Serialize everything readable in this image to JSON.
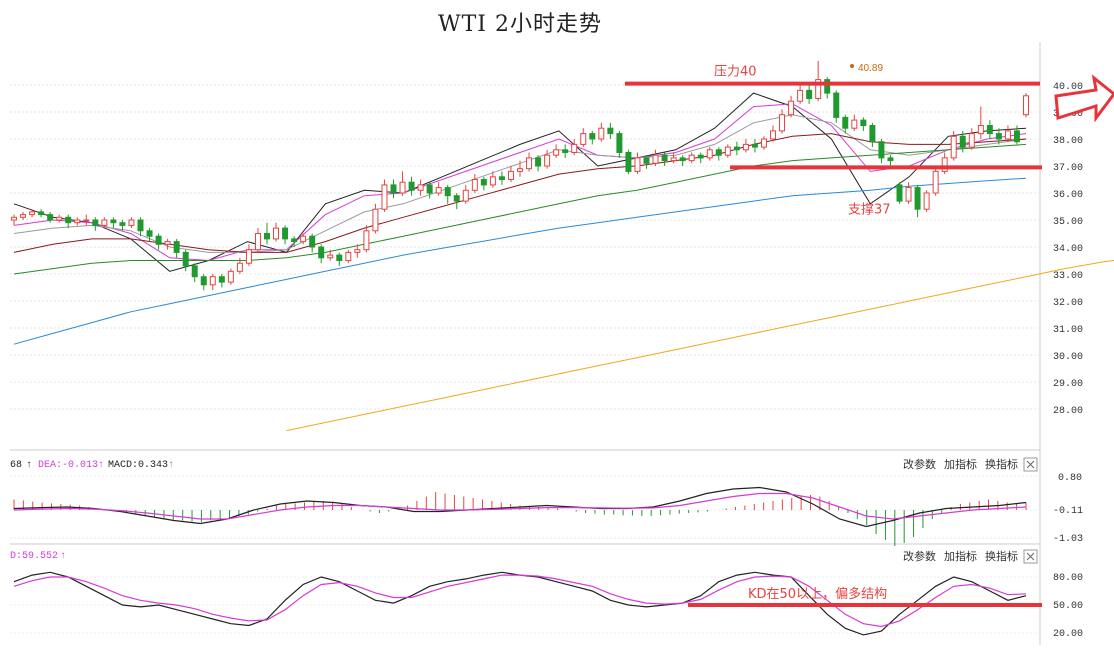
{
  "title": "WTI 2小时走势",
  "main_chart": {
    "y_ticks": [
      "40.00",
      "39.00",
      "38.00",
      "37.00",
      "36.00",
      "35.00",
      "34.00",
      "33.00",
      "32.00",
      "31.00",
      "30.00",
      "29.00",
      "28.00"
    ],
    "resistance": {
      "label": "压力40",
      "value": 40.05
    },
    "support": {
      "label": "支撑37",
      "value": 36.95
    },
    "high_label": "40.89",
    "colors": {
      "up": "#e8433f",
      "down": "#1f9a2f",
      "annot": "#e8433f"
    }
  },
  "macd_panel": {
    "header": {
      "prefix": "68",
      "dea": "DEA:-0.013",
      "macd": "MACD:0.343"
    },
    "buttons": [
      "改参数",
      "加指标",
      "换指标"
    ],
    "y_ticks": [
      "0.80",
      "-0.11",
      "-1.03"
    ]
  },
  "kdj_panel": {
    "header": {
      "value": "D:59.552"
    },
    "buttons": [
      "改参数",
      "加指标",
      "换指标"
    ],
    "y_ticks": [
      "80.00",
      "50.00",
      "20.00"
    ],
    "annotation": "KD在50以上，偏多结构",
    "line_value": 50
  },
  "chart_data": [
    {
      "type": "candlestick",
      "title": "WTI 2小时走势",
      "ylim": [
        27.2,
        40.9
      ],
      "annotations": [
        "压力40",
        "支撑37",
        "40.89"
      ],
      "candles": [
        [
          35.0,
          35.1,
          34.8,
          35.2
        ],
        [
          35.1,
          35.2,
          35.0,
          35.3
        ],
        [
          35.2,
          35.3,
          35.1,
          35.4
        ],
        [
          35.3,
          35.2,
          35.1,
          35.4
        ],
        [
          35.2,
          35.0,
          34.9,
          35.3
        ],
        [
          35.0,
          35.1,
          34.9,
          35.2
        ],
        [
          35.1,
          34.9,
          34.7,
          35.2
        ],
        [
          34.9,
          35.0,
          34.8,
          35.1
        ],
        [
          35.0,
          35.0,
          34.8,
          35.2
        ],
        [
          35.0,
          34.8,
          34.6,
          35.1
        ],
        [
          34.8,
          35.0,
          34.7,
          35.1
        ],
        [
          35.0,
          34.9,
          34.7,
          35.1
        ],
        [
          34.9,
          34.8,
          34.6,
          35.0
        ],
        [
          34.8,
          35.0,
          34.7,
          35.1
        ],
        [
          35.0,
          34.6,
          34.4,
          35.1
        ],
        [
          34.6,
          34.4,
          34.2,
          34.7
        ],
        [
          34.4,
          34.1,
          33.9,
          34.5
        ],
        [
          34.1,
          34.2,
          33.9,
          34.3
        ],
        [
          34.2,
          33.8,
          33.6,
          34.3
        ],
        [
          33.8,
          33.3,
          33.1,
          33.9
        ],
        [
          33.3,
          32.9,
          32.7,
          33.4
        ],
        [
          32.9,
          32.6,
          32.4,
          33.0
        ],
        [
          32.6,
          32.9,
          32.4,
          33.0
        ],
        [
          32.9,
          32.7,
          32.5,
          33.0
        ],
        [
          32.7,
          33.1,
          32.6,
          33.2
        ],
        [
          33.1,
          33.4,
          33.0,
          33.6
        ],
        [
          33.4,
          33.9,
          33.3,
          34.1
        ],
        [
          33.9,
          34.5,
          33.8,
          34.7
        ],
        [
          34.5,
          34.3,
          34.1,
          34.9
        ],
        [
          34.3,
          34.7,
          34.2,
          34.9
        ],
        [
          34.7,
          34.3,
          34.1,
          34.8
        ],
        [
          34.3,
          34.2,
          34.0,
          34.4
        ],
        [
          34.2,
          34.4,
          34.1,
          34.5
        ],
        [
          34.4,
          34.0,
          33.8,
          34.5
        ],
        [
          34.0,
          33.6,
          33.4,
          34.1
        ],
        [
          33.6,
          33.7,
          33.5,
          33.9
        ],
        [
          33.7,
          33.5,
          33.3,
          33.8
        ],
        [
          33.5,
          33.8,
          33.4,
          33.9
        ],
        [
          33.8,
          33.9,
          33.6,
          34.1
        ],
        [
          33.9,
          34.6,
          33.8,
          34.8
        ],
        [
          34.6,
          35.4,
          34.5,
          35.6
        ],
        [
          35.4,
          36.3,
          35.3,
          36.5
        ],
        [
          36.3,
          36.0,
          35.8,
          36.5
        ],
        [
          36.0,
          36.4,
          35.9,
          36.8
        ],
        [
          36.4,
          36.1,
          35.9,
          36.6
        ],
        [
          36.1,
          36.3,
          35.9,
          36.5
        ],
        [
          36.3,
          36.0,
          35.8,
          36.4
        ],
        [
          36.0,
          36.2,
          35.9,
          36.4
        ],
        [
          36.2,
          35.9,
          35.6,
          36.3
        ],
        [
          35.9,
          35.7,
          35.4,
          36.0
        ],
        [
          35.7,
          36.1,
          35.6,
          36.3
        ],
        [
          36.1,
          36.5,
          36.0,
          36.7
        ],
        [
          36.5,
          36.3,
          36.1,
          36.6
        ],
        [
          36.3,
          36.6,
          36.2,
          36.8
        ],
        [
          36.6,
          36.5,
          36.3,
          36.8
        ],
        [
          36.5,
          36.8,
          36.4,
          37.0
        ],
        [
          36.8,
          36.9,
          36.6,
          37.2
        ],
        [
          36.9,
          37.3,
          36.8,
          37.5
        ],
        [
          37.3,
          37.0,
          36.8,
          37.4
        ],
        [
          37.0,
          37.4,
          36.9,
          37.6
        ],
        [
          37.4,
          37.6,
          37.3,
          37.8
        ],
        [
          37.6,
          37.5,
          37.3,
          37.8
        ],
        [
          37.5,
          37.8,
          37.4,
          38.0
        ],
        [
          37.8,
          38.2,
          37.7,
          38.4
        ],
        [
          38.2,
          38.0,
          37.8,
          38.3
        ],
        [
          38.0,
          38.4,
          37.9,
          38.6
        ],
        [
          38.4,
          38.2,
          38.0,
          38.6
        ],
        [
          38.2,
          37.5,
          37.3,
          38.3
        ],
        [
          37.5,
          36.8,
          36.7,
          37.6
        ],
        [
          36.8,
          37.3,
          36.7,
          37.5
        ],
        [
          37.3,
          37.1,
          36.9,
          37.4
        ],
        [
          37.1,
          37.4,
          37.0,
          37.6
        ],
        [
          37.4,
          37.2,
          37.0,
          37.5
        ],
        [
          37.2,
          37.3,
          37.1,
          37.5
        ],
        [
          37.3,
          37.2,
          37.0,
          37.4
        ],
        [
          37.2,
          37.4,
          37.1,
          37.5
        ],
        [
          37.4,
          37.3,
          37.1,
          37.5
        ],
        [
          37.3,
          37.6,
          37.2,
          37.7
        ],
        [
          37.6,
          37.4,
          37.2,
          37.7
        ],
        [
          37.4,
          37.7,
          37.3,
          37.8
        ],
        [
          37.7,
          37.6,
          37.4,
          37.9
        ],
        [
          37.6,
          37.8,
          37.5,
          38.0
        ],
        [
          37.8,
          37.7,
          37.5,
          38.0
        ],
        [
          37.7,
          38.0,
          37.6,
          38.1
        ],
        [
          38.0,
          38.3,
          37.9,
          38.5
        ],
        [
          38.3,
          38.9,
          38.2,
          39.1
        ],
        [
          38.9,
          39.4,
          38.8,
          39.6
        ],
        [
          39.4,
          39.8,
          39.3,
          40.0
        ],
        [
          39.8,
          39.5,
          39.3,
          40.0
        ],
        [
          39.5,
          40.2,
          39.4,
          40.89
        ],
        [
          40.2,
          39.7,
          39.5,
          40.3
        ],
        [
          39.7,
          38.8,
          38.6,
          39.8
        ],
        [
          38.8,
          38.4,
          38.2,
          38.9
        ],
        [
          38.4,
          38.7,
          38.3,
          38.9
        ],
        [
          38.7,
          38.5,
          38.3,
          38.8
        ],
        [
          38.5,
          37.9,
          37.7,
          38.6
        ],
        [
          37.9,
          37.3,
          37.1,
          38.0
        ],
        [
          37.3,
          37.2,
          36.9,
          37.4
        ],
        [
          36.3,
          35.7,
          35.6,
          36.4
        ],
        [
          35.7,
          36.2,
          35.6,
          36.4
        ],
        [
          36.2,
          35.4,
          35.1,
          36.3
        ],
        [
          35.4,
          36.0,
          35.3,
          36.1
        ],
        [
          36.0,
          36.8,
          35.9,
          37.0
        ],
        [
          36.8,
          37.3,
          36.7,
          37.5
        ],
        [
          37.3,
          38.1,
          37.2,
          38.3
        ],
        [
          38.1,
          37.7,
          37.5,
          38.3
        ],
        [
          37.7,
          38.2,
          37.6,
          38.4
        ],
        [
          38.2,
          38.5,
          38.0,
          39.2
        ],
        [
          38.5,
          38.2,
          38.0,
          38.7
        ],
        [
          38.2,
          38.0,
          37.8,
          38.4
        ],
        [
          38.0,
          38.3,
          37.9,
          38.5
        ],
        [
          38.3,
          37.9,
          37.8,
          38.5
        ],
        [
          38.9,
          39.6,
          38.8,
          39.7
        ]
      ],
      "moving_averages": [
        {
          "color": "#222222",
          "values": [
            35.6,
            35.1,
            34.9,
            34.3,
            33.1,
            33.5,
            34.2,
            33.8,
            35.6,
            36.1,
            36.0,
            36.6,
            37.2,
            37.8,
            38.3,
            37.0,
            37.3,
            37.6,
            38.4,
            39.7,
            39.2,
            38.0,
            35.6,
            36.6,
            38.1,
            38.3,
            38.4
          ]
        },
        {
          "color": "#d63bd6",
          "values": [
            34.8,
            35.0,
            34.9,
            34.5,
            33.6,
            33.5,
            33.9,
            33.9,
            35.2,
            35.9,
            36.0,
            36.5,
            37.0,
            37.5,
            38.0,
            37.4,
            37.3,
            37.5,
            38.0,
            39.2,
            39.3,
            38.5,
            36.8,
            37.0,
            37.6,
            38.0,
            38.2
          ]
        },
        {
          "color": "#9a9a9a",
          "values": [
            34.5,
            34.7,
            34.8,
            34.6,
            34.0,
            33.8,
            33.8,
            33.9,
            34.6,
            35.3,
            35.6,
            36.1,
            36.6,
            37.1,
            37.6,
            37.4,
            37.3,
            37.4,
            37.8,
            38.6,
            38.9,
            38.6,
            37.6,
            37.4,
            37.6,
            37.8,
            38.0
          ]
        },
        {
          "color": "#8b1a1a",
          "values": [
            33.8,
            34.1,
            34.3,
            34.3,
            34.1,
            33.9,
            33.8,
            33.8,
            34.2,
            34.7,
            35.1,
            35.5,
            35.9,
            36.3,
            36.7,
            36.9,
            37.0,
            37.2,
            37.4,
            37.8,
            38.1,
            38.2,
            37.9,
            37.8,
            37.8,
            37.9,
            38.0
          ]
        },
        {
          "color": "#2a8a2a",
          "values": [
            33.0,
            33.2,
            33.4,
            33.5,
            33.5,
            33.5,
            33.5,
            33.6,
            33.8,
            34.1,
            34.4,
            34.7,
            35.0,
            35.3,
            35.6,
            35.9,
            36.1,
            36.4,
            36.7,
            37.0,
            37.2,
            37.3,
            37.4,
            37.5,
            37.6,
            37.7,
            37.8
          ]
        },
        {
          "color": "#2b8ad6",
          "values": [
            30.4,
            30.8,
            31.2,
            31.6,
            31.9,
            32.2,
            32.5,
            32.8,
            33.1,
            33.4,
            33.7,
            33.95,
            34.2,
            34.45,
            34.7,
            34.9,
            35.1,
            35.3,
            35.5,
            35.7,
            35.9,
            36.0,
            36.1,
            36.25,
            36.35,
            36.45,
            36.55
          ]
        },
        {
          "color": "#f0a820",
          "start_index": 7,
          "values": [
            27.2,
            27.5,
            27.8,
            28.1,
            28.4,
            28.7,
            29.0,
            29.3,
            29.6,
            29.9,
            30.2,
            30.5,
            30.8,
            31.1,
            31.4,
            31.7,
            32.0,
            32.3,
            32.6,
            32.9,
            33.2,
            33.45,
            33.65
          ]
        }
      ]
    },
    {
      "type": "macd",
      "ylim": [
        -1.2,
        0.95
      ],
      "histogram": [
        0.35,
        0.32,
        0.28,
        0.25,
        0.22,
        0.2,
        0.18,
        0.15,
        0.1,
        0.05,
        0.0,
        -0.05,
        -0.1,
        -0.15,
        -0.2,
        -0.25,
        -0.3,
        -0.32,
        -0.35,
        -0.38,
        -0.4,
        -0.35,
        -0.3,
        -0.25,
        -0.2,
        -0.15,
        -0.05,
        0.05,
        0.15,
        0.2,
        0.22,
        0.25,
        0.28,
        0.3,
        0.25,
        0.2,
        0.1,
        0.0,
        -0.05,
        -0.1,
        -0.05,
        0.05,
        0.15,
        0.3,
        0.45,
        0.6,
        0.55,
        0.5,
        0.45,
        0.4,
        0.35,
        0.3,
        0.25,
        0.2,
        0.15,
        0.12,
        0.1,
        0.08,
        0.05,
        0.0,
        -0.05,
        -0.1,
        -0.12,
        -0.15,
        -0.15,
        -0.18,
        -0.18,
        -0.2,
        -0.2,
        -0.18,
        -0.15,
        -0.12,
        -0.1,
        -0.08,
        -0.05,
        0.0,
        0.05,
        0.1,
        0.15,
        0.2,
        0.25,
        0.3,
        0.35,
        0.4,
        0.45,
        0.5,
        0.45,
        0.3,
        0.1,
        -0.1,
        -0.3,
        -0.5,
        -0.8,
        -1.0,
        -1.2,
        -1.1,
        -0.9,
        -0.6,
        -0.3,
        -0.1,
        0.1,
        0.2,
        0.25,
        0.3,
        0.35,
        0.3,
        0.25,
        0.2,
        0.25
      ],
      "dif": [
        0.05,
        0.08,
        0.1,
        0.05,
        -0.05,
        -0.2,
        -0.35,
        -0.45,
        -0.3,
        0.0,
        0.2,
        0.3,
        0.25,
        0.15,
        0.1,
        -0.05,
        -0.05,
        0.0,
        0.05,
        0.1,
        0.15,
        0.1,
        0.05,
        0.05,
        0.1,
        0.3,
        0.55,
        0.7,
        0.75,
        0.6,
        0.2,
        -0.3,
        -0.55,
        -0.35,
        -0.1,
        0.05,
        0.1,
        0.15,
        0.25
      ],
      "dea": [
        0.0,
        0.03,
        0.05,
        0.03,
        -0.02,
        -0.1,
        -0.2,
        -0.3,
        -0.3,
        -0.15,
        0.0,
        0.1,
        0.15,
        0.15,
        0.1,
        0.05,
        0.0,
        0.0,
        0.02,
        0.05,
        0.08,
        0.08,
        0.07,
        0.06,
        0.07,
        0.15,
        0.3,
        0.45,
        0.55,
        0.55,
        0.4,
        0.1,
        -0.2,
        -0.3,
        -0.2,
        -0.1,
        0.0,
        0.05,
        0.1
      ]
    },
    {
      "type": "kdj",
      "ylim": [
        12,
        100
      ],
      "k": [
        75,
        82,
        85,
        80,
        70,
        60,
        50,
        48,
        50,
        45,
        40,
        35,
        30,
        28,
        35,
        55,
        72,
        80,
        75,
        65,
        55,
        52,
        60,
        70,
        75,
        78,
        82,
        85,
        82,
        80,
        75,
        70,
        65,
        55,
        50,
        48,
        50,
        52,
        60,
        75,
        82,
        85,
        82,
        80,
        60,
        40,
        25,
        18,
        22,
        40,
        55,
        70,
        80,
        75,
        65,
        55,
        60
      ],
      "d": [
        70,
        76,
        80,
        80,
        75,
        68,
        60,
        55,
        52,
        50,
        46,
        40,
        36,
        33,
        34,
        45,
        60,
        72,
        74,
        70,
        63,
        58,
        58,
        64,
        70,
        74,
        78,
        82,
        82,
        81,
        78,
        74,
        70,
        62,
        56,
        52,
        51,
        52,
        56,
        66,
        75,
        80,
        81,
        80,
        70,
        55,
        40,
        30,
        27,
        33,
        45,
        58,
        70,
        72,
        68,
        61,
        62
      ]
    }
  ]
}
